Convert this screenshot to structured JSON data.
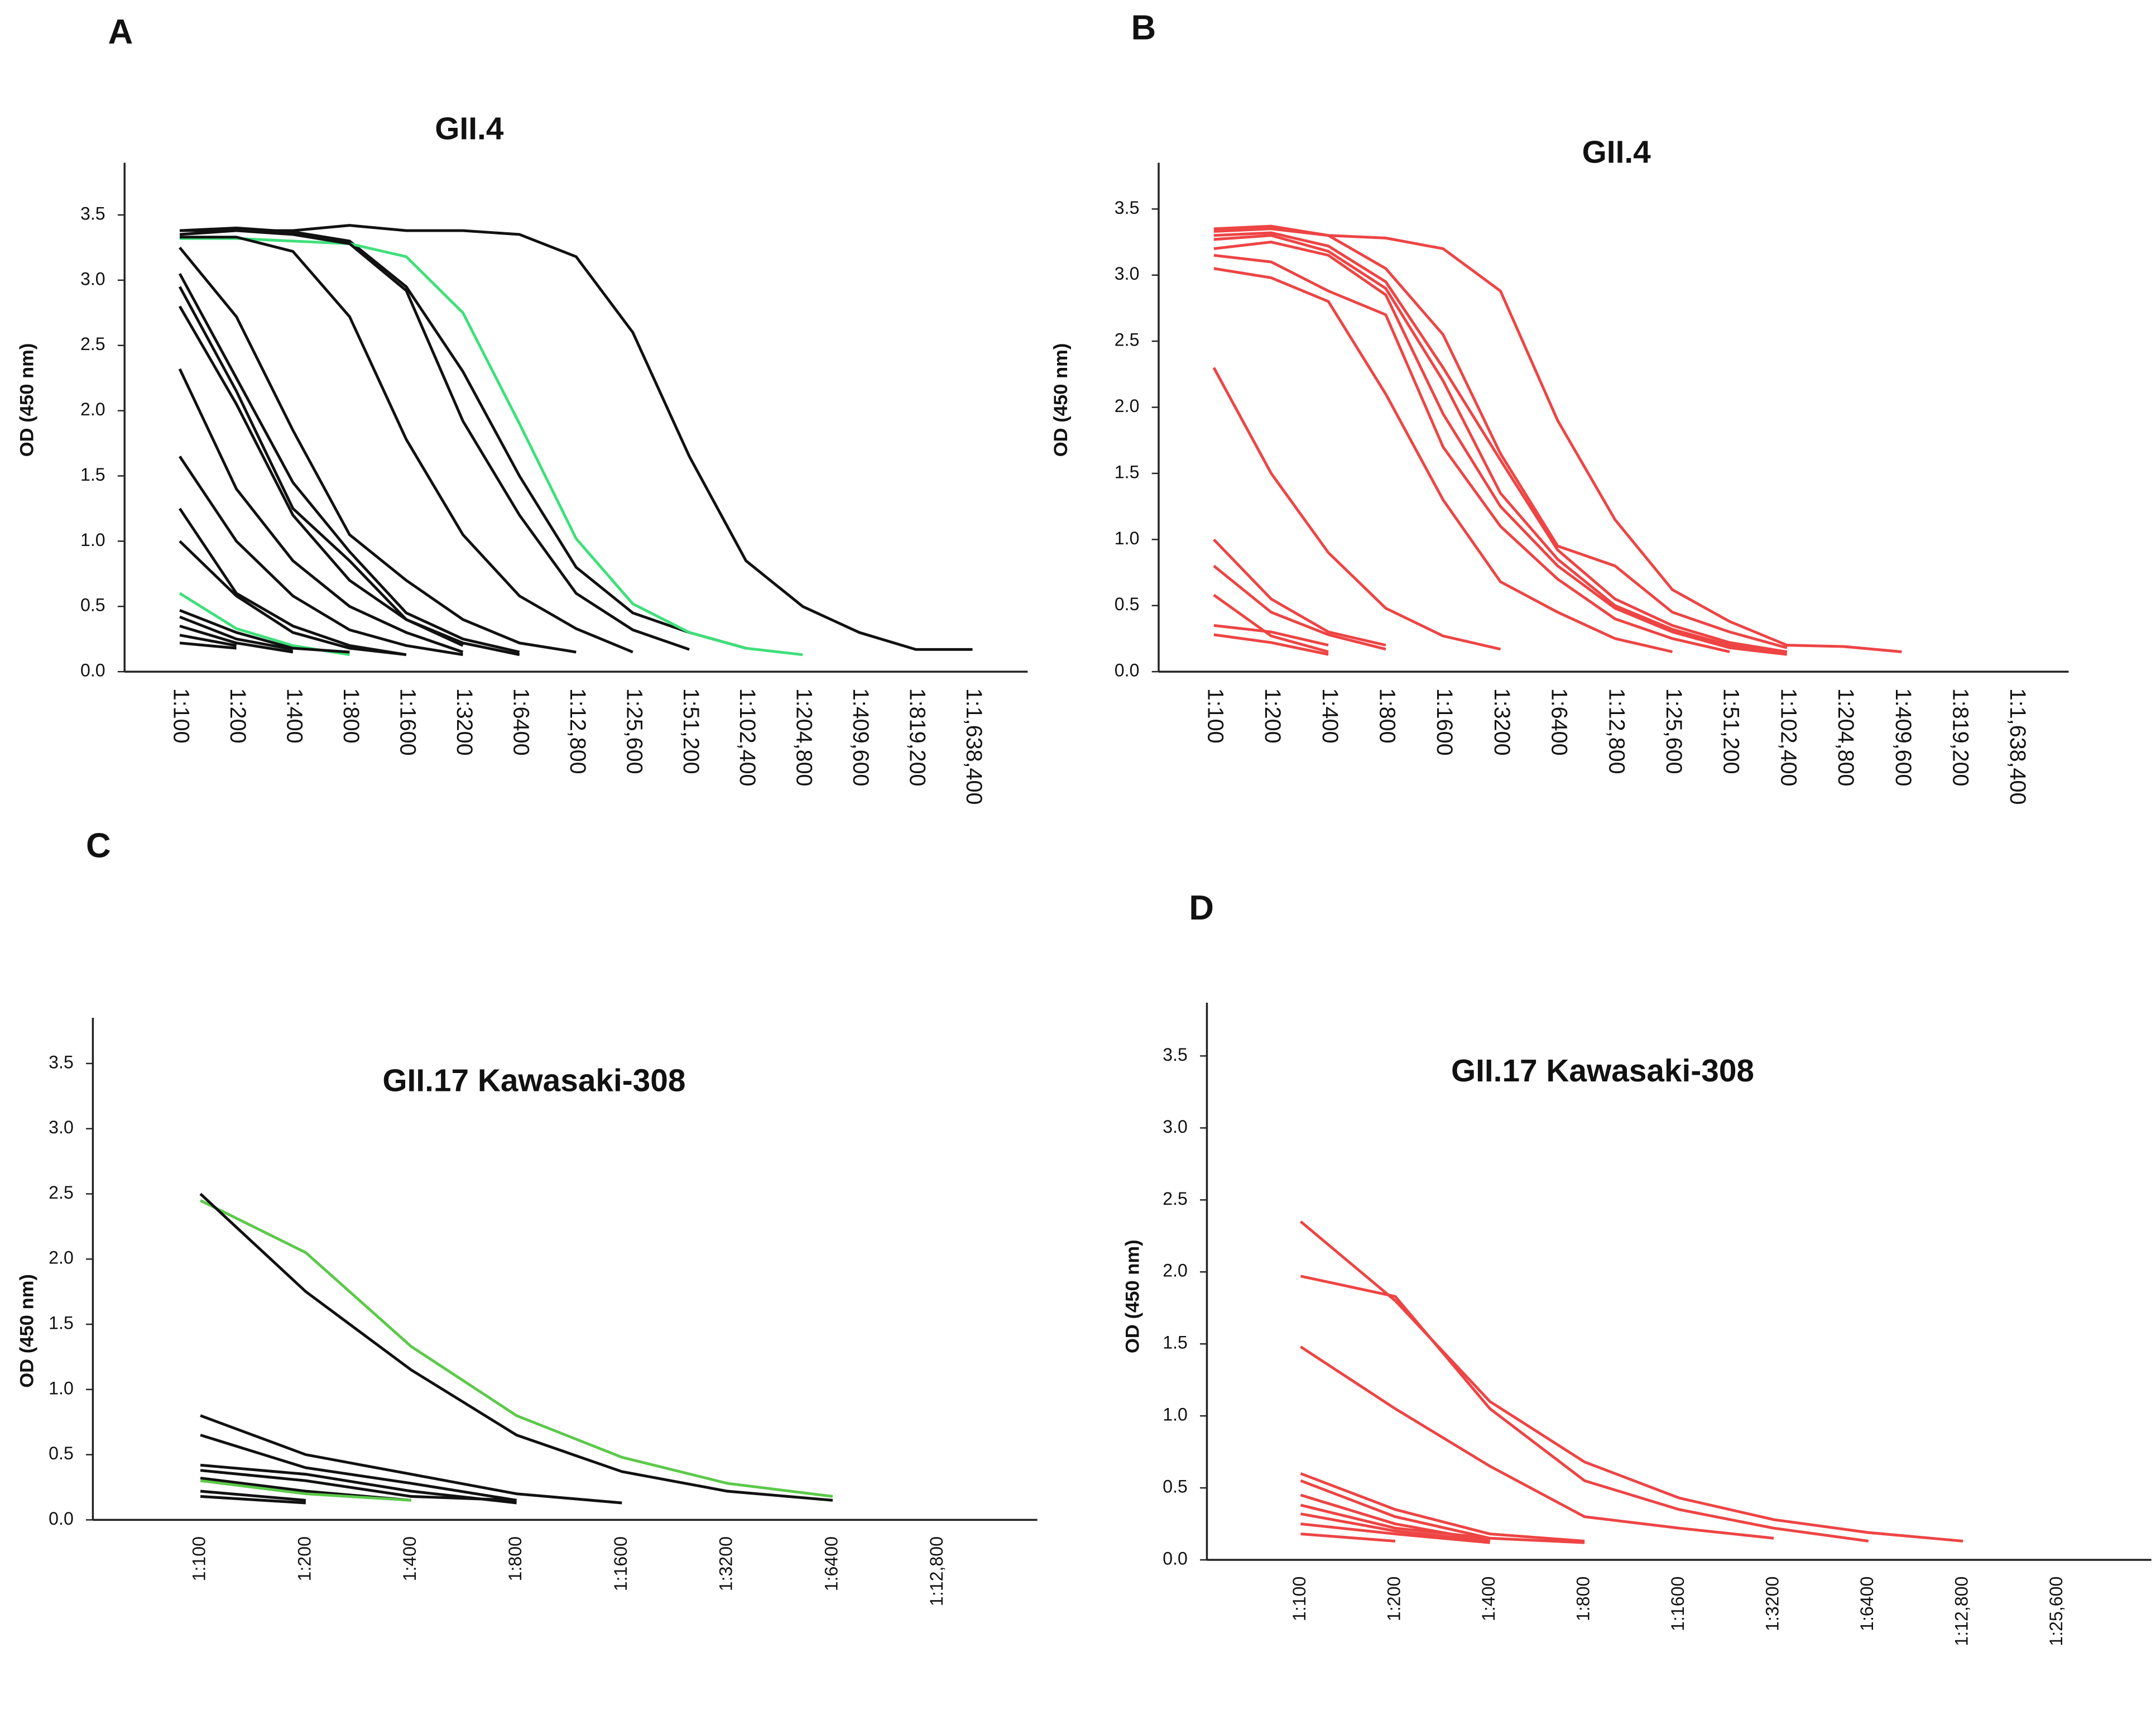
{
  "chart_data": [
    {
      "type": "line",
      "panel": "A",
      "title": "GII.4",
      "y_label": "OD (450 nm)",
      "categories": [
        "1:100",
        "1:200",
        "1:400",
        "1:800",
        "1:1600",
        "1:3200",
        "1:6400",
        "1:12,800",
        "1:25,600",
        "1:51,200",
        "1:102,400",
        "1:204,800",
        "1:409,600",
        "1:819,200",
        "1:1,638,400"
      ],
      "ylim": [
        0,
        3.9
      ],
      "yticks": [
        {
          "value": 0,
          "label": "0.0"
        },
        0.5,
        {
          "value": 1,
          "label": "1.0"
        },
        1.5,
        {
          "value": 2,
          "label": "2.0"
        },
        2.5,
        {
          "value": 3,
          "label": "3.0"
        },
        3.5
      ],
      "series": [
        {
          "color": "#111111",
          "values": [
            3.35,
            3.38,
            3.38,
            3.42,
            3.38,
            3.38,
            3.35,
            3.18,
            2.6,
            1.65,
            0.85,
            0.5,
            0.3,
            0.17,
            0.17
          ]
        },
        {
          "color": "#111111",
          "values": [
            3.38,
            3.4,
            3.37,
            3.3,
            2.95,
            2.3,
            1.5,
            0.8,
            0.45,
            0.3,
            0.18,
            null,
            null,
            null,
            null
          ]
        },
        {
          "color": "#3ee07a",
          "values": [
            3.32,
            3.32,
            3.3,
            3.28,
            3.18,
            2.75,
            1.9,
            1.02,
            0.52,
            0.3,
            0.18,
            0.13,
            null,
            null,
            null
          ]
        },
        {
          "color": "#111111",
          "values": [
            3.38,
            3.38,
            3.35,
            3.28,
            2.92,
            1.92,
            1.2,
            0.6,
            0.32,
            0.17,
            null,
            null,
            null,
            null,
            null
          ]
        },
        {
          "color": "#111111",
          "values": [
            3.33,
            3.33,
            3.22,
            2.72,
            1.78,
            1.05,
            0.58,
            0.33,
            0.15,
            null,
            null,
            null,
            null,
            null,
            null
          ]
        },
        {
          "color": "#111111",
          "values": [
            3.25,
            2.72,
            1.85,
            1.05,
            0.7,
            0.4,
            0.22,
            0.15,
            null,
            null,
            null,
            null,
            null,
            null,
            null
          ]
        },
        {
          "color": "#111111",
          "values": [
            3.05,
            2.25,
            1.45,
            0.92,
            0.45,
            0.25,
            0.15,
            null,
            null,
            null,
            null,
            null,
            null,
            null,
            null
          ]
        },
        {
          "color": "#111111",
          "values": [
            2.95,
            2.15,
            1.25,
            0.85,
            0.4,
            0.22,
            0.13,
            null,
            null,
            null,
            null,
            null,
            null,
            null,
            null
          ]
        },
        {
          "color": "#111111",
          "values": [
            2.8,
            2.05,
            1.2,
            0.7,
            0.4,
            0.2,
            null,
            null,
            null,
            null,
            null,
            null,
            null,
            null,
            null
          ]
        },
        {
          "color": "#111111",
          "values": [
            2.32,
            1.4,
            0.85,
            0.5,
            0.3,
            0.15,
            null,
            null,
            null,
            null,
            null,
            null,
            null,
            null,
            null
          ]
        },
        {
          "color": "#111111",
          "values": [
            1.65,
            1.0,
            0.58,
            0.32,
            0.2,
            0.13,
            null,
            null,
            null,
            null,
            null,
            null,
            null,
            null,
            null
          ]
        },
        {
          "color": "#111111",
          "values": [
            1.25,
            0.6,
            0.35,
            0.2,
            0.13,
            null,
            null,
            null,
            null,
            null,
            null,
            null,
            null,
            null,
            null
          ]
        },
        {
          "color": "#111111",
          "values": [
            1.0,
            0.58,
            0.3,
            0.18,
            0.13,
            null,
            null,
            null,
            null,
            null,
            null,
            null,
            null,
            null,
            null
          ]
        },
        {
          "color": "#3ee07a",
          "values": [
            0.6,
            0.33,
            0.2,
            0.13,
            null,
            null,
            null,
            null,
            null,
            null,
            null,
            null,
            null,
            null,
            null
          ]
        },
        {
          "color": "#111111",
          "values": [
            0.47,
            0.3,
            0.18,
            0.15,
            null,
            null,
            null,
            null,
            null,
            null,
            null,
            null,
            null,
            null,
            null
          ]
        },
        {
          "color": "#111111",
          "values": [
            0.42,
            0.25,
            0.17,
            null,
            null,
            null,
            null,
            null,
            null,
            null,
            null,
            null,
            null,
            null,
            null
          ]
        },
        {
          "color": "#111111",
          "values": [
            0.35,
            0.22,
            0.15,
            null,
            null,
            null,
            null,
            null,
            null,
            null,
            null,
            null,
            null,
            null,
            null
          ]
        },
        {
          "color": "#111111",
          "values": [
            0.28,
            0.2,
            null,
            null,
            null,
            null,
            null,
            null,
            null,
            null,
            null,
            null,
            null,
            null,
            null
          ]
        },
        {
          "color": "#111111",
          "values": [
            0.22,
            0.18,
            null,
            null,
            null,
            null,
            null,
            null,
            null,
            null,
            null,
            null,
            null,
            null,
            null
          ]
        }
      ]
    },
    {
      "type": "line",
      "panel": "B",
      "title": "GII.4",
      "y_label": "OD (450 nm)",
      "categories": [
        "1:100",
        "1:200",
        "1:400",
        "1:800",
        "1:1600",
        "1:3200",
        "1:6400",
        "1:12,800",
        "1:25,600",
        "1:51,200",
        "1:102,400",
        "1:204,800",
        "1:409,600",
        "1:819,200",
        "1:1,638,400"
      ],
      "ylim": [
        0,
        3.85
      ],
      "yticks": [
        {
          "value": 0,
          "label": "0.0"
        },
        0.5,
        {
          "value": 1,
          "label": "1.0"
        },
        1.5,
        {
          "value": 2,
          "label": "2.0"
        },
        2.5,
        {
          "value": 3,
          "label": "3.0"
        },
        3.5
      ],
      "series": [
        {
          "color": "#ee4444",
          "values": [
            3.35,
            3.37,
            3.3,
            3.28,
            3.2,
            2.88,
            1.9,
            1.15,
            0.62,
            0.38,
            0.2,
            0.19,
            0.15,
            null,
            null
          ]
        },
        {
          "color": "#ee4444",
          "values": [
            3.33,
            3.35,
            3.3,
            3.05,
            2.55,
            1.65,
            0.95,
            0.8,
            0.45,
            0.3,
            0.18,
            null,
            null,
            null,
            null
          ]
        },
        {
          "color": "#ee4444",
          "values": [
            3.3,
            3.32,
            3.22,
            2.95,
            2.3,
            1.6,
            0.92,
            0.55,
            0.35,
            0.22,
            0.15,
            null,
            null,
            null,
            null
          ]
        },
        {
          "color": "#ee4444",
          "values": [
            3.27,
            3.3,
            3.18,
            2.9,
            2.2,
            1.35,
            0.85,
            0.5,
            0.32,
            0.2,
            0.15,
            null,
            null,
            null,
            null
          ]
        },
        {
          "color": "#ee4444",
          "values": [
            3.2,
            3.25,
            3.15,
            2.85,
            1.95,
            1.25,
            0.8,
            0.48,
            0.3,
            0.18,
            0.13,
            null,
            null,
            null,
            null
          ]
        },
        {
          "color": "#ee4444",
          "values": [
            3.15,
            3.1,
            2.88,
            2.7,
            1.7,
            1.1,
            0.7,
            0.4,
            0.25,
            0.15,
            null,
            null,
            null,
            null,
            null
          ]
        },
        {
          "color": "#ee4444",
          "values": [
            3.05,
            2.98,
            2.8,
            2.1,
            1.3,
            0.68,
            0.45,
            0.25,
            0.15,
            null,
            null,
            null,
            null,
            null,
            null
          ]
        },
        {
          "color": "#ee4444",
          "values": [
            2.3,
            1.5,
            0.9,
            0.48,
            0.27,
            0.17,
            null,
            null,
            null,
            null,
            null,
            null,
            null,
            null,
            null
          ]
        },
        {
          "color": "#ee4444",
          "values": [
            1.0,
            0.55,
            0.3,
            0.2,
            null,
            null,
            null,
            null,
            null,
            null,
            null,
            null,
            null,
            null,
            null
          ]
        },
        {
          "color": "#ee4444",
          "values": [
            0.8,
            0.45,
            0.28,
            0.17,
            null,
            null,
            null,
            null,
            null,
            null,
            null,
            null,
            null,
            null,
            null
          ]
        },
        {
          "color": "#ee4444",
          "values": [
            0.58,
            0.27,
            0.15,
            null,
            null,
            null,
            null,
            null,
            null,
            null,
            null,
            null,
            null,
            null,
            null
          ]
        },
        {
          "color": "#ee4444",
          "values": [
            0.35,
            0.3,
            0.2,
            null,
            null,
            null,
            null,
            null,
            null,
            null,
            null,
            null,
            null,
            null,
            null
          ]
        },
        {
          "color": "#ee4444",
          "values": [
            0.28,
            0.22,
            0.13,
            null,
            null,
            null,
            null,
            null,
            null,
            null,
            null,
            null,
            null,
            null,
            null
          ]
        }
      ]
    },
    {
      "type": "line",
      "panel": "C",
      "title": "GII.17 Kawasaki-308",
      "y_label": "OD (450 nm)",
      "categories": [
        "1:100",
        "1:200",
        "1:400",
        "1:800",
        "1:1600",
        "1:3200",
        "1:6400",
        "1:12,800"
      ],
      "ylim": [
        0,
        3.85
      ],
      "yticks": [
        {
          "value": 0,
          "label": "0.0"
        },
        0.5,
        {
          "value": 1,
          "label": "1.0"
        },
        1.5,
        {
          "value": 2,
          "label": "2.0"
        },
        2.5,
        {
          "value": 3,
          "label": "3.0"
        },
        3.5
      ],
      "series": [
        {
          "color": "#5cc94a",
          "values": [
            2.45,
            2.05,
            1.33,
            0.8,
            0.48,
            0.28,
            0.18,
            null
          ]
        },
        {
          "color": "#111111",
          "values": [
            2.5,
            1.75,
            1.15,
            0.65,
            0.37,
            0.22,
            0.15,
            null
          ]
        },
        {
          "color": "#111111",
          "values": [
            0.8,
            0.5,
            0.35,
            0.2,
            0.13,
            null,
            null,
            null
          ]
        },
        {
          "color": "#111111",
          "values": [
            0.65,
            0.4,
            0.28,
            0.15,
            null,
            null,
            null,
            null
          ]
        },
        {
          "color": "#111111",
          "values": [
            0.42,
            0.35,
            0.22,
            0.13,
            null,
            null,
            null,
            null
          ]
        },
        {
          "color": "#111111",
          "values": [
            0.38,
            0.3,
            0.18,
            0.15,
            null,
            null,
            null,
            null
          ]
        },
        {
          "color": "#111111",
          "values": [
            0.32,
            0.22,
            0.15,
            null,
            null,
            null,
            null,
            null
          ]
        },
        {
          "color": "#5cc94a",
          "values": [
            0.3,
            0.2,
            0.15,
            null,
            null,
            null,
            null,
            null
          ]
        },
        {
          "color": "#111111",
          "values": [
            0.22,
            0.15,
            null,
            null,
            null,
            null,
            null,
            null
          ]
        },
        {
          "color": "#111111",
          "values": [
            0.18,
            0.13,
            null,
            null,
            null,
            null,
            null,
            null
          ]
        }
      ]
    },
    {
      "type": "line",
      "panel": "D",
      "title": "GII.17 Kawasaki-308",
      "y_label": "OD (450 nm)",
      "categories": [
        "1:100",
        "1:200",
        "1:400",
        "1:800",
        "1:1600",
        "1:3200",
        "1:6400",
        "1:12,800",
        "1:25,600"
      ],
      "ylim": [
        0,
        3.87
      ],
      "yticks": [
        {
          "value": 0,
          "label": "0.0"
        },
        0.5,
        {
          "value": 1,
          "label": "1.0"
        },
        1.5,
        {
          "value": 2,
          "label": "2.0"
        },
        2.5,
        {
          "value": 3,
          "label": "3.0"
        },
        3.5
      ],
      "series": [
        {
          "color": "#ee4444",
          "values": [
            2.35,
            1.8,
            1.1,
            0.68,
            0.43,
            0.28,
            0.19,
            0.13,
            null
          ]
        },
        {
          "color": "#ee4444",
          "values": [
            1.97,
            1.83,
            1.05,
            0.55,
            0.35,
            0.22,
            0.13,
            null,
            null
          ]
        },
        {
          "color": "#ee4444",
          "values": [
            1.48,
            1.05,
            0.65,
            0.3,
            0.22,
            0.15,
            null,
            null,
            null
          ]
        },
        {
          "color": "#ee4444",
          "values": [
            0.6,
            0.35,
            0.18,
            0.13,
            null,
            null,
            null,
            null,
            null
          ]
        },
        {
          "color": "#ee4444",
          "values": [
            0.55,
            0.3,
            0.15,
            0.12,
            null,
            null,
            null,
            null,
            null
          ]
        },
        {
          "color": "#ee4444",
          "values": [
            0.45,
            0.25,
            0.13,
            null,
            null,
            null,
            null,
            null,
            null
          ]
        },
        {
          "color": "#ee4444",
          "values": [
            0.38,
            0.22,
            0.15,
            null,
            null,
            null,
            null,
            null,
            null
          ]
        },
        {
          "color": "#ee4444",
          "values": [
            0.32,
            0.2,
            0.13,
            null,
            null,
            null,
            null,
            null,
            null
          ]
        },
        {
          "color": "#ee4444",
          "values": [
            0.25,
            0.18,
            0.12,
            null,
            null,
            null,
            null,
            null,
            null
          ]
        },
        {
          "color": "#ee4444",
          "values": [
            0.18,
            0.13,
            null,
            null,
            null,
            null,
            null,
            null,
            null
          ]
        }
      ]
    }
  ]
}
